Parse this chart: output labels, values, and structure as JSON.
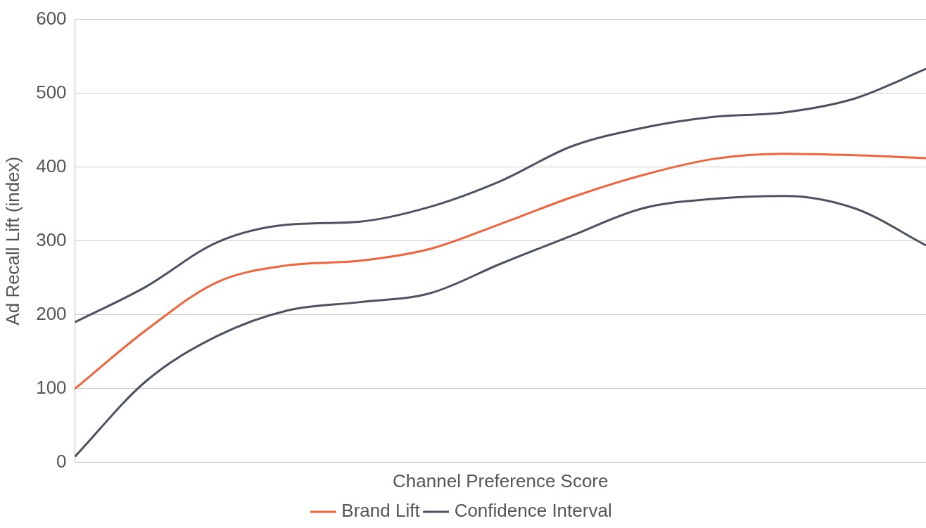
{
  "chart_data": {
    "type": "line",
    "xlabel": "Channel Preference Score",
    "ylabel": "Ad Recall Lift (index)",
    "categories": [
      null,
      null,
      null,
      null,
      null,
      null,
      null,
      null,
      null,
      null,
      null,
      null,
      null
    ],
    "series": [
      {
        "name": "Brand Lift",
        "color": "#f0643c",
        "values": [
          100,
          179,
          244,
          267,
          273,
          289,
          323,
          359,
          389,
          411,
          418,
          416,
          412
        ]
      },
      {
        "name": "Confidence Interval",
        "color": "#4d5260",
        "values": [
          190,
          238,
          298,
          322,
          326,
          346,
          381,
          428,
          453,
          468,
          474,
          493,
          533
        ]
      },
      {
        "color": "#4d5260",
        "values": [
          8,
          110,
          171,
          206,
          217,
          229,
          269,
          307,
          344,
          357,
          361,
          344,
          294
        ]
      }
    ],
    "ylim": [
      0,
      600
    ],
    "yticks": [
      0,
      100,
      200,
      300,
      400,
      500,
      600
    ],
    "grid": "y",
    "legend": "bottom",
    "marker": "none",
    "line_style": "solid",
    "tick_labels": "y"
  }
}
